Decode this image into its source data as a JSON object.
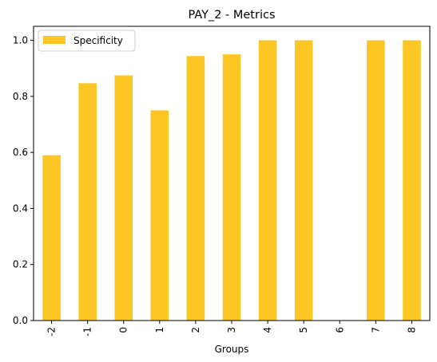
{
  "chart_data": {
    "type": "bar",
    "title": "PAY_2 - Metrics",
    "xlabel": "Groups",
    "ylabel": "",
    "categories": [
      "-2",
      "-1",
      "0",
      "1",
      "2",
      "3",
      "4",
      "5",
      "6",
      "7",
      "8"
    ],
    "series": [
      {
        "name": "Specificity",
        "color": "#fcc624",
        "values": [
          0.59,
          0.847,
          0.875,
          0.75,
          0.944,
          0.95,
          1.0,
          1.0,
          null,
          1.0,
          1.0
        ]
      }
    ],
    "ylim": [
      0,
      1.05
    ],
    "yticks": [
      "0.0",
      "0.2",
      "0.4",
      "0.6",
      "0.8",
      "1.0"
    ],
    "ytick_values": [
      0,
      0.2,
      0.4,
      0.6,
      0.8,
      1.0
    ],
    "legend_position": "top-left",
    "grid": false
  }
}
